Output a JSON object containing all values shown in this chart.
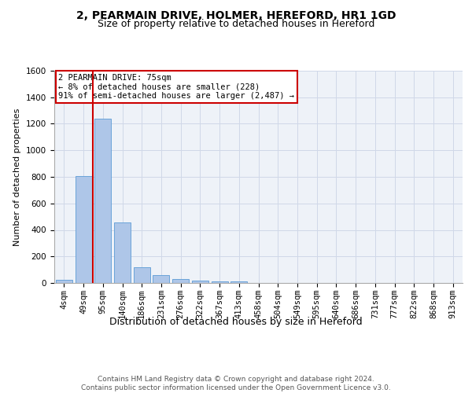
{
  "title": "2, PEARMAIN DRIVE, HOLMER, HEREFORD, HR1 1GD",
  "subtitle": "Size of property relative to detached houses in Hereford",
  "xlabel": "Distribution of detached houses by size in Hereford",
  "ylabel": "Number of detached properties",
  "bar_color": "#aec6e8",
  "bar_edge_color": "#5b9bd5",
  "grid_color": "#d0d8e8",
  "bg_color": "#eef2f8",
  "categories": [
    "4sqm",
    "49sqm",
    "95sqm",
    "140sqm",
    "186sqm",
    "231sqm",
    "276sqm",
    "322sqm",
    "367sqm",
    "413sqm",
    "458sqm",
    "504sqm",
    "549sqm",
    "595sqm",
    "640sqm",
    "686sqm",
    "731sqm",
    "777sqm",
    "822sqm",
    "868sqm",
    "913sqm"
  ],
  "values": [
    25,
    805,
    1238,
    455,
    120,
    58,
    27,
    18,
    14,
    14,
    0,
    0,
    0,
    0,
    0,
    0,
    0,
    0,
    0,
    0,
    0
  ],
  "ylim": [
    0,
    1600
  ],
  "yticks": [
    0,
    200,
    400,
    600,
    800,
    1000,
    1200,
    1400,
    1600
  ],
  "vline_x": 1.5,
  "vline_color": "#cc0000",
  "annotation_text": "2 PEARMAIN DRIVE: 75sqm\n← 8% of detached houses are smaller (228)\n91% of semi-detached houses are larger (2,487) →",
  "annotation_box_color": "#cc0000",
  "footer_text": "Contains HM Land Registry data © Crown copyright and database right 2024.\nContains public sector information licensed under the Open Government Licence v3.0.",
  "title_fontsize": 10,
  "subtitle_fontsize": 9,
  "xlabel_fontsize": 9,
  "ylabel_fontsize": 8,
  "tick_fontsize": 7.5,
  "footer_fontsize": 6.5,
  "annotation_fontsize": 7.5
}
